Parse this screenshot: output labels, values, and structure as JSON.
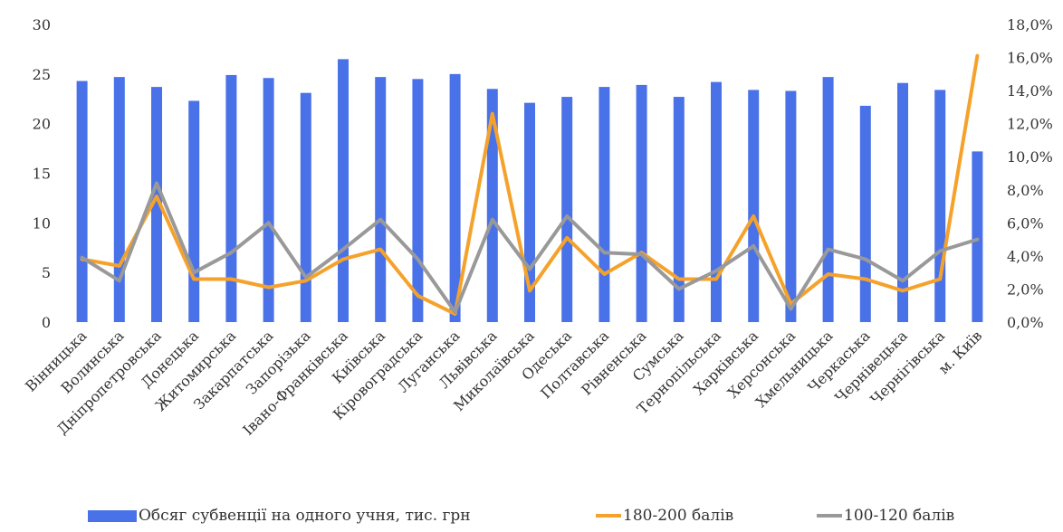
{
  "chart_data": {
    "type": "bar",
    "categories": [
      "Вінницька",
      "Волинська",
      "Дніпропетровська",
      "Донецька",
      "Житомирська",
      "Закарпатська",
      "Запорізька",
      "Івано-Франківська",
      "Київська",
      "Кіровоградська",
      "Луганська",
      "Львівська",
      "Миколаївська",
      "Одеська",
      "Полтавська",
      "Рівненська",
      "Сумська",
      "Тернопільська",
      "Харківська",
      "Херсонська",
      "Хмельницька",
      "Черкаська",
      "Чернівецька",
      "Чернігівська",
      "м. Київ"
    ],
    "series": [
      {
        "name": "Обсяг субвенції на одного учня, тис. грн",
        "kind": "bar",
        "axis": "left",
        "color": "#4a72e8",
        "values": [
          24.3,
          24.7,
          23.7,
          22.3,
          24.9,
          24.6,
          23.1,
          26.5,
          24.7,
          24.5,
          25.0,
          23.5,
          22.1,
          22.7,
          23.7,
          23.9,
          22.7,
          24.2,
          23.4,
          23.3,
          24.7,
          21.8,
          24.1,
          23.4,
          17.2
        ]
      },
      {
        "name": "180-200 балів",
        "kind": "line",
        "axis": "right",
        "color": "#f5a22c",
        "values": [
          3.8,
          3.4,
          7.6,
          2.6,
          2.6,
          2.1,
          2.5,
          3.8,
          4.4,
          1.6,
          0.5,
          12.6,
          1.9,
          5.1,
          2.9,
          4.2,
          2.6,
          2.6,
          6.4,
          1.1,
          2.9,
          2.6,
          1.9,
          2.6,
          16.1
        ]
      },
      {
        "name": "100-120 балів",
        "kind": "line",
        "axis": "right",
        "color": "#999999",
        "values": [
          3.9,
          2.5,
          8.4,
          3.0,
          4.2,
          6.0,
          2.7,
          4.4,
          6.2,
          3.8,
          0.6,
          6.2,
          3.2,
          6.4,
          4.2,
          4.1,
          2.0,
          3.1,
          4.6,
          0.8,
          4.4,
          3.8,
          2.5,
          4.3,
          5.0
        ]
      }
    ],
    "left_axis": {
      "ylim": [
        0,
        30
      ],
      "ticks": [
        "0",
        "5",
        "10",
        "15",
        "20",
        "25",
        "30"
      ]
    },
    "right_axis": {
      "ylim": [
        0,
        18
      ],
      "ticks": [
        "0,0%",
        "2,0%",
        "4,0%",
        "6,0%",
        "8,0%",
        "10,0%",
        "12,0%",
        "14,0%",
        "16,0%",
        "18,0%"
      ]
    },
    "grid": false,
    "legend_position": "bottom"
  }
}
